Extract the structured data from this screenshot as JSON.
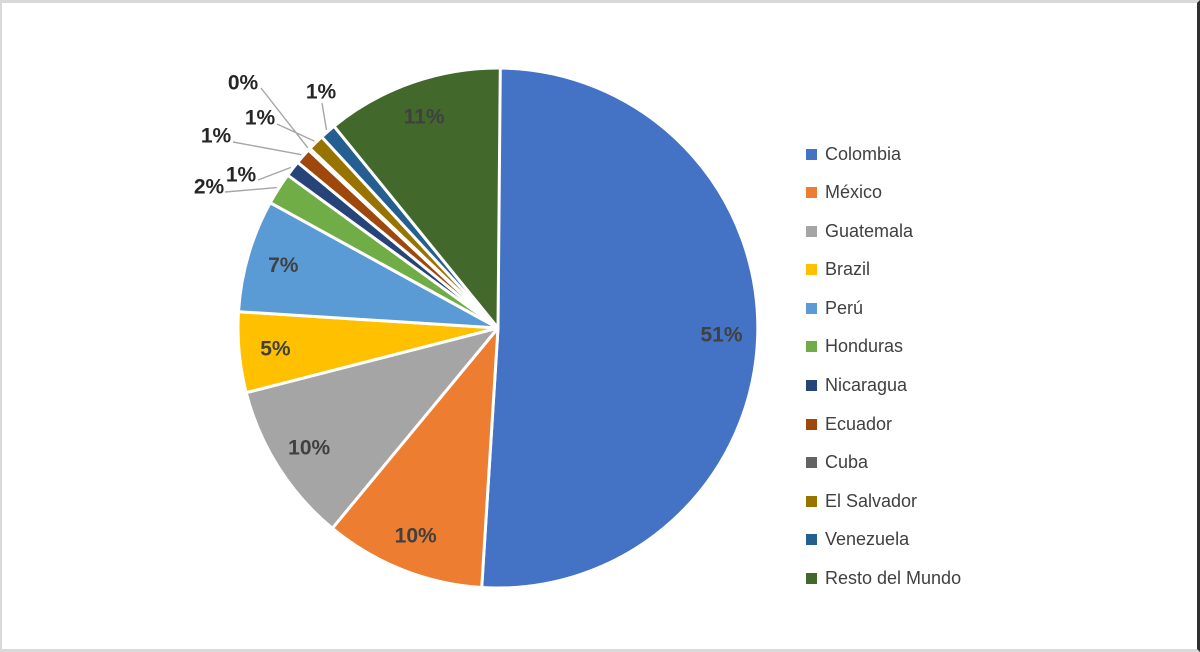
{
  "chart_data": {
    "type": "pie",
    "direction": "clockwise",
    "start_angle_deg": 0,
    "legend_position": "right",
    "categories": [
      "Colombia",
      "México",
      "Guatemala",
      "Brazil",
      "Perú",
      "Honduras",
      "Nicaragua",
      "Ecuador",
      "Cuba",
      "El Salvador",
      "Venezuela",
      "Resto del Mundo"
    ],
    "values_percent": [
      51,
      10,
      10,
      5,
      7,
      2,
      1,
      1,
      0,
      1,
      1,
      11
    ],
    "labels": [
      "51%",
      "10%",
      "10%",
      "5%",
      "7%",
      "2%",
      "1%",
      "1%",
      "0%",
      "1%",
      "1%",
      "11%"
    ],
    "colors": [
      "#4472C4",
      "#ED7D31",
      "#A5A5A5",
      "#FFC000",
      "#5B9BD5",
      "#70AD47",
      "#264478",
      "#9E480E",
      "#636363",
      "#997300",
      "#255E91",
      "#43682B"
    ],
    "inside_label_color": "#404040",
    "callout_label_color": "#262626",
    "leader_line_color": "#A6A6A6",
    "slice_border_color": "#FFFFFF",
    "legend_text_color": "#404040",
    "title": ""
  }
}
